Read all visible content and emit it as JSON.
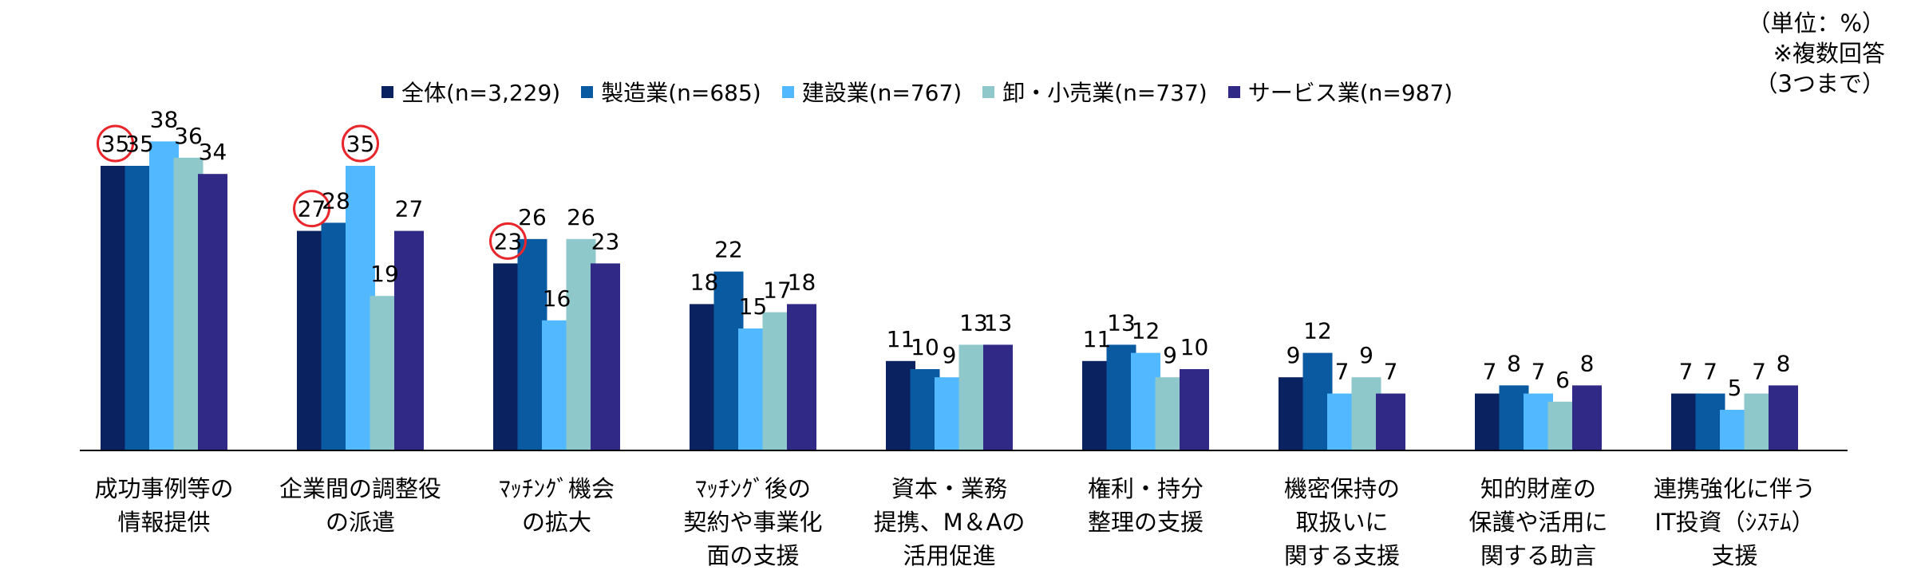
{
  "unit_note": [
    "（単位：%）",
    "※複数回答",
    "（3つまで）"
  ],
  "colors": {
    "all": "#0b2260",
    "manufacturing": "#0a5aa2",
    "construction": "#52b8ff",
    "retail": "#8fc8cb",
    "service": "#302985",
    "highlight_circle": "#e8262b",
    "axis": "#000000"
  },
  "chart_data": {
    "type": "bar",
    "title": "",
    "xlabel": "",
    "ylabel": "",
    "ylim": [
      0,
      40
    ],
    "grid": false,
    "legend_position": "top",
    "categories": [
      [
        "成功事例等の",
        "情報提供"
      ],
      [
        "企業間の調整役",
        "の派遣"
      ],
      [
        "ﾏｯﾁﾝｸﾞ機会",
        "の拡大"
      ],
      [
        "ﾏｯﾁﾝｸﾞ後の",
        "契約や事業化",
        "面の支援"
      ],
      [
        "資本・業務",
        "提携、M＆Aの",
        "活用促進"
      ],
      [
        "権利・持分",
        "整理の支援"
      ],
      [
        "機密保持の",
        "取扱いに",
        "関する支援"
      ],
      [
        "知的財産の",
        "保護や活用に",
        "関する助言"
      ],
      [
        "連携強化に伴う",
        "IT投資（ｼｽﾃﾑ）",
        "支援"
      ]
    ],
    "series": [
      {
        "name": "全体(n=3,229)",
        "color_key": "all",
        "values": [
          35,
          27,
          23,
          18,
          11,
          11,
          9,
          7,
          7
        ]
      },
      {
        "name": "製造業(n=685)",
        "color_key": "manufacturing",
        "values": [
          35,
          28,
          26,
          22,
          10,
          13,
          12,
          8,
          7
        ]
      },
      {
        "name": "建設業(n=767)",
        "color_key": "construction",
        "values": [
          38,
          35,
          16,
          15,
          9,
          12,
          7,
          7,
          5
        ]
      },
      {
        "name": "卸・小売業(n=737)",
        "color_key": "retail",
        "values": [
          36,
          19,
          26,
          17,
          13,
          9,
          9,
          6,
          7
        ]
      },
      {
        "name": "サービス業(n=987)",
        "color_key": "service",
        "values": [
          34,
          27,
          23,
          18,
          13,
          10,
          7,
          8,
          8
        ]
      }
    ],
    "highlighted_bars": [
      {
        "category": 0,
        "series": 0
      },
      {
        "category": 1,
        "series": 0
      },
      {
        "category": 1,
        "series": 2
      },
      {
        "category": 2,
        "series": 0
      }
    ]
  }
}
